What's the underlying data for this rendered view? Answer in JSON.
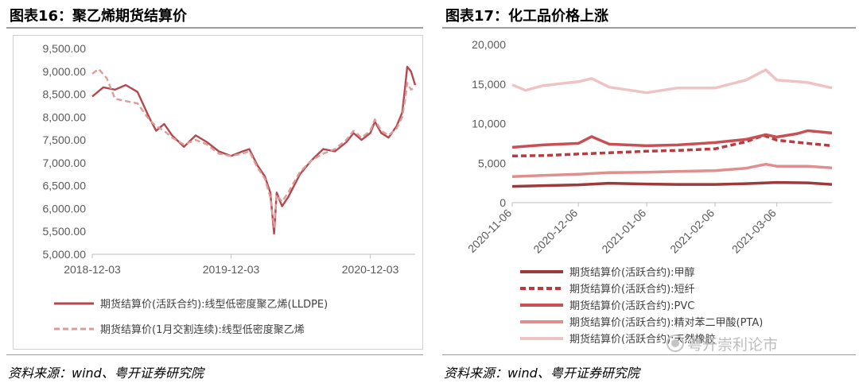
{
  "left": {
    "title": "图表16：聚乙烯期货结算价",
    "source": "资料来源：wind、粤开证券研究院"
  },
  "right": {
    "title": "图表17：化工品价格上涨",
    "source": "资料来源：wind、粤开证券研究院"
  },
  "watermark": {
    "text": "粤开崇利论市"
  },
  "colors": {
    "lldpe": "#b5484c",
    "continuous": "#dc9c9c",
    "methanol": "#9c3a3c",
    "staple_fiber": "#b83c3f",
    "pvc": "#c85055",
    "pta": "#e08f8f",
    "rubber": "#eec3c3"
  },
  "chart_data": [
    {
      "type": "line",
      "ylim": [
        5000,
        9500
      ],
      "yticks": [
        "5,000.00",
        "5,500.00",
        "6,000.00",
        "6,500.00",
        "7,000.00",
        "7,500.00",
        "8,000.00",
        "8,500.00",
        "9,000.00",
        "9,500.00"
      ],
      "xticks": [
        "2018-12-03",
        "2019-12-03",
        "2020-12-03"
      ],
      "xlim": [
        "2018-12-03",
        "2021-03-31"
      ],
      "legend_position": "bottom",
      "series": [
        {
          "name": "期货结算价(活跃合约):线型低密度聚乙烯(LLDPE)",
          "style": "solid",
          "x": [
            "2018-12-03",
            "2019-01-01",
            "2019-02-01",
            "2019-03-01",
            "2019-04-01",
            "2019-05-01",
            "2019-05-20",
            "2019-06-10",
            "2019-07-01",
            "2019-08-01",
            "2019-09-01",
            "2019-10-01",
            "2019-11-01",
            "2019-12-03",
            "2020-01-02",
            "2020-01-20",
            "2020-02-10",
            "2020-03-01",
            "2020-03-15",
            "2020-03-25",
            "2020-04-01",
            "2020-04-15",
            "2020-05-01",
            "2020-06-01",
            "2020-07-01",
            "2020-08-01",
            "2020-09-01",
            "2020-10-01",
            "2020-10-20",
            "2020-11-10",
            "2020-12-03",
            "2020-12-15",
            "2021-01-01",
            "2021-01-20",
            "2021-02-10",
            "2021-02-25",
            "2021-03-05",
            "2021-03-10",
            "2021-03-20",
            "2021-03-31"
          ],
          "values": [
            8450,
            8650,
            8600,
            8700,
            8550,
            8000,
            7700,
            7850,
            7600,
            7350,
            7600,
            7450,
            7250,
            7150,
            7250,
            7300,
            6950,
            6700,
            6350,
            5450,
            6350,
            6050,
            6250,
            6750,
            7050,
            7300,
            7250,
            7450,
            7650,
            7500,
            7650,
            7900,
            7650,
            7550,
            7800,
            8100,
            8700,
            9100,
            9000,
            8700
          ]
        },
        {
          "name": "期货结算价(1月交割连续):线型低密度聚乙烯",
          "style": "dashed",
          "x": [
            "2018-12-03",
            "2018-12-20",
            "2019-01-10",
            "2019-02-01",
            "2019-03-01",
            "2019-04-01",
            "2019-05-01",
            "2019-05-20",
            "2019-06-10",
            "2019-07-01",
            "2019-08-01",
            "2019-09-01",
            "2019-10-01",
            "2019-11-01",
            "2019-12-03",
            "2020-01-02",
            "2020-01-20",
            "2020-02-10",
            "2020-03-01",
            "2020-03-15",
            "2020-03-25",
            "2020-04-01",
            "2020-04-15",
            "2020-05-01",
            "2020-06-01",
            "2020-07-01",
            "2020-08-01",
            "2020-09-01",
            "2020-10-01",
            "2020-10-20",
            "2020-11-10",
            "2020-12-03",
            "2020-12-15",
            "2021-01-01",
            "2021-01-20",
            "2021-02-10",
            "2021-02-25",
            "2021-03-05",
            "2021-03-10",
            "2021-03-20",
            "2021-03-31"
          ],
          "values": [
            8950,
            9050,
            8850,
            8400,
            8350,
            8300,
            7950,
            7800,
            7700,
            7550,
            7400,
            7500,
            7400,
            7200,
            7150,
            7200,
            7250,
            6900,
            6650,
            6250,
            5600,
            6300,
            6150,
            6350,
            6800,
            7050,
            7200,
            7300,
            7500,
            7700,
            7550,
            7700,
            7950,
            7700,
            7600,
            7750,
            8000,
            8400,
            8750,
            8600,
            8650
          ]
        }
      ]
    },
    {
      "type": "line",
      "ylim": [
        0,
        20000
      ],
      "yticks": [
        "0",
        "5,000",
        "10,000",
        "15,000",
        "20,000"
      ],
      "xticks": [
        "2020-11-06",
        "2020-12-06",
        "2021-01-06",
        "2021-02-06",
        "2021-03-06"
      ],
      "xlim": [
        "2020-11-06",
        "2021-03-31"
      ],
      "legend_position": "bottom",
      "series": [
        {
          "name": "期货结算价(活跃合约):甲醇",
          "style": "solid",
          "x": [
            "2020-11-06",
            "2020-11-20",
            "2020-12-06",
            "2020-12-20",
            "2021-01-06",
            "2021-01-20",
            "2021-02-06",
            "2021-02-20",
            "2021-03-06",
            "2021-03-20",
            "2021-03-31"
          ],
          "values": [
            2050,
            2150,
            2250,
            2450,
            2350,
            2300,
            2300,
            2400,
            2550,
            2500,
            2300
          ]
        },
        {
          "name": "期货结算价(活跃合约):短纤",
          "style": "dashed",
          "x": [
            "2020-11-06",
            "2020-11-20",
            "2020-12-06",
            "2020-12-20",
            "2021-01-06",
            "2021-01-20",
            "2021-02-06",
            "2021-02-20",
            "2021-02-28",
            "2021-03-06",
            "2021-03-20",
            "2021-03-31"
          ],
          "values": [
            5900,
            5950,
            6150,
            6300,
            6500,
            6600,
            6800,
            7700,
            8500,
            7900,
            7500,
            7200
          ]
        },
        {
          "name": "期货结算价(活跃合约):PVC",
          "style": "solid",
          "x": [
            "2020-11-06",
            "2020-11-20",
            "2020-12-06",
            "2020-12-12",
            "2020-12-20",
            "2021-01-06",
            "2021-01-20",
            "2021-02-06",
            "2021-02-20",
            "2021-03-01",
            "2021-03-06",
            "2021-03-15",
            "2021-03-20",
            "2021-03-31"
          ],
          "values": [
            7000,
            7300,
            7500,
            8350,
            7400,
            7200,
            7300,
            7600,
            8000,
            8600,
            8300,
            8700,
            9100,
            8800
          ]
        },
        {
          "name": "期货结算价(活跃合约):精对苯二甲酸(PTA)",
          "style": "solid",
          "x": [
            "2020-11-06",
            "2020-11-20",
            "2020-12-06",
            "2020-12-20",
            "2021-01-06",
            "2021-01-20",
            "2021-02-06",
            "2021-02-20",
            "2021-03-01",
            "2021-03-06",
            "2021-03-20",
            "2021-03-31"
          ],
          "values": [
            3300,
            3450,
            3600,
            3800,
            3850,
            3950,
            4050,
            4350,
            4850,
            4600,
            4600,
            4400
          ]
        },
        {
          "name": "期货结算价(活跃合约):天然橡胶",
          "style": "solid",
          "x": [
            "2020-11-06",
            "2020-11-12",
            "2020-11-20",
            "2020-12-06",
            "2020-12-12",
            "2020-12-20",
            "2021-01-06",
            "2021-01-20",
            "2021-02-06",
            "2021-02-20",
            "2021-03-01",
            "2021-03-06",
            "2021-03-20",
            "2021-03-31"
          ],
          "values": [
            14900,
            14200,
            14800,
            15300,
            15700,
            14600,
            13900,
            14500,
            14500,
            15500,
            16800,
            15500,
            15200,
            14500
          ]
        }
      ]
    }
  ]
}
